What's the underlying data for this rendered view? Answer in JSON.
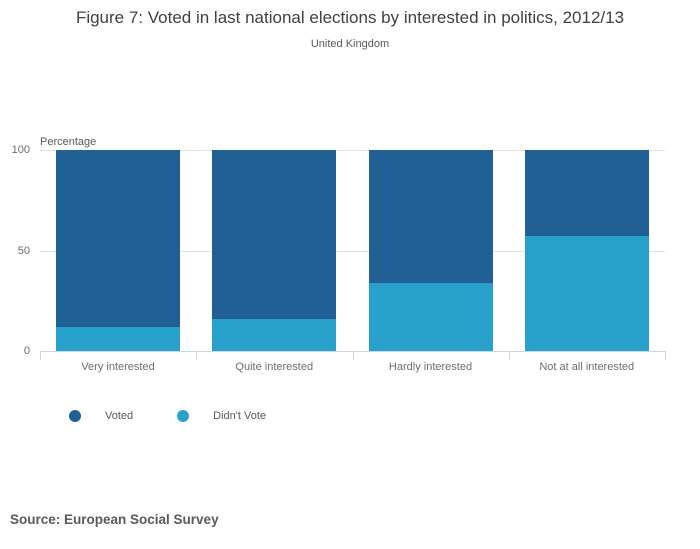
{
  "header": {
    "title": "Figure 7: Voted in last national elections by interested in politics, 2012/13",
    "subtitle": "United Kingdom"
  },
  "chart_data": {
    "type": "bar",
    "stacked": true,
    "title": "Figure 7: Voted in last national elections by interested in politics, 2012/13",
    "subtitle": "United Kingdom",
    "categories": [
      "Very interested",
      "Quite interested",
      "Hardly interested",
      "Not at all interested"
    ],
    "series": [
      {
        "name": "Voted",
        "color": "#206095",
        "values": [
          88,
          84,
          66,
          43
        ]
      },
      {
        "name": "Didn't Vote",
        "color": "#27a0cc",
        "values": [
          12,
          16,
          34,
          57
        ]
      }
    ],
    "ylabel": "Percentage",
    "xlabel": "",
    "yticks": [
      0,
      50,
      100
    ],
    "ylim": [
      0,
      100
    ],
    "grid": true,
    "legend_position": "bottom-left"
  },
  "footer": {
    "source": "Source: European Social Survey"
  },
  "colors": {
    "voted": "#206095",
    "didnt_vote": "#27a0cc",
    "gridline": "#e4e4e4",
    "axis": "#c9d6e4",
    "tick_text": "#6e6e6e",
    "title_text": "#404042"
  }
}
